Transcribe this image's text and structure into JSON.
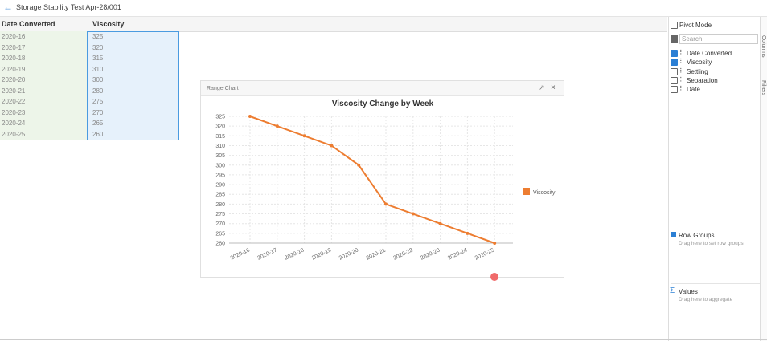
{
  "header": {
    "title": "Storage Stability Test Apr-28/001"
  },
  "table": {
    "columns": [
      "Date Converted",
      "Viscosity"
    ],
    "rows": [
      [
        "2020-16",
        325
      ],
      [
        "2020-17",
        320
      ],
      [
        "2020-18",
        315
      ],
      [
        "2020-19",
        310
      ],
      [
        "2020-20",
        300
      ],
      [
        "2020-21",
        280
      ],
      [
        "2020-22",
        275
      ],
      [
        "2020-23",
        270
      ],
      [
        "2020-24",
        265
      ],
      [
        "2020-25",
        260
      ]
    ]
  },
  "chart_panel": {
    "title": "Range Chart"
  },
  "chart_data": {
    "type": "line",
    "title": "Viscosity Change by Week",
    "categories": [
      "2020-16",
      "2020-17",
      "2020-18",
      "2020-19",
      "2020-20",
      "2020-21",
      "2020-22",
      "2020-23",
      "2020-24",
      "2020-25"
    ],
    "series": [
      {
        "name": "Viscosity",
        "color": "#ed7d31",
        "values": [
          325,
          320,
          315,
          310,
          300,
          280,
          275,
          270,
          265,
          260
        ]
      }
    ],
    "ylim": [
      260,
      325
    ],
    "yticks": [
      260,
      265,
      270,
      275,
      280,
      285,
      290,
      295,
      300,
      305,
      310,
      315,
      320,
      325
    ],
    "grid": true,
    "legend": "right"
  },
  "sidebar": {
    "pivot_mode": {
      "label": "Pivot Mode",
      "checked": false
    },
    "search": "Search",
    "columns": [
      {
        "label": "Date Converted",
        "checked": true
      },
      {
        "label": "Viscosity",
        "checked": true
      },
      {
        "label": "Settling",
        "checked": false
      },
      {
        "label": "Separation",
        "checked": false
      },
      {
        "label": "Date",
        "checked": false
      }
    ],
    "tabs": [
      "Columns",
      "Filters"
    ],
    "row_groups": {
      "title": "Row Groups",
      "hint": "Drag here to set row groups"
    },
    "values": {
      "title": "Values",
      "hint": "Drag here to aggregate"
    }
  }
}
